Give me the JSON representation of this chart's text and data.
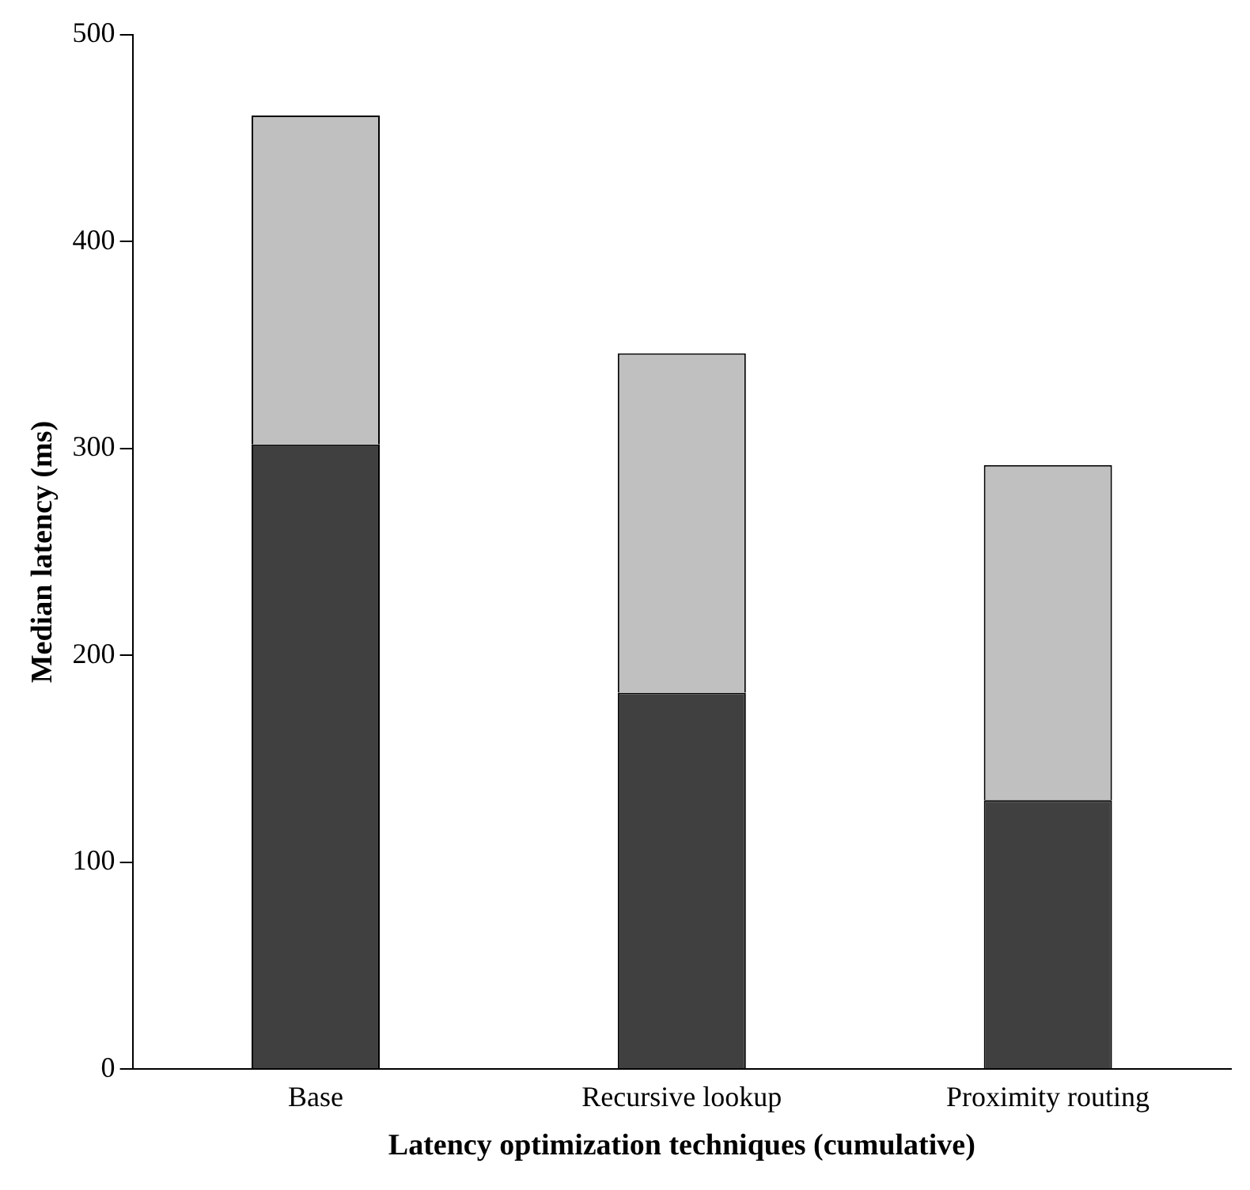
{
  "chart_data": {
    "type": "bar",
    "stacked": true,
    "xlabel": "Latency optimization techniques (cumulative)",
    "ylabel": "Median latency (ms)",
    "categories": [
      "Base",
      "Recursive lookup",
      "Proximity routing"
    ],
    "series": [
      {
        "color": "#404040",
        "values": [
          302,
          182,
          130
        ]
      },
      {
        "color": "#c0c0c0",
        "values": [
          159,
          164,
          162
        ]
      }
    ],
    "ylim": [
      0,
      500
    ],
    "yticks": [
      0,
      100,
      200,
      300,
      400,
      500
    ],
    "grid": false,
    "legend": false
  }
}
